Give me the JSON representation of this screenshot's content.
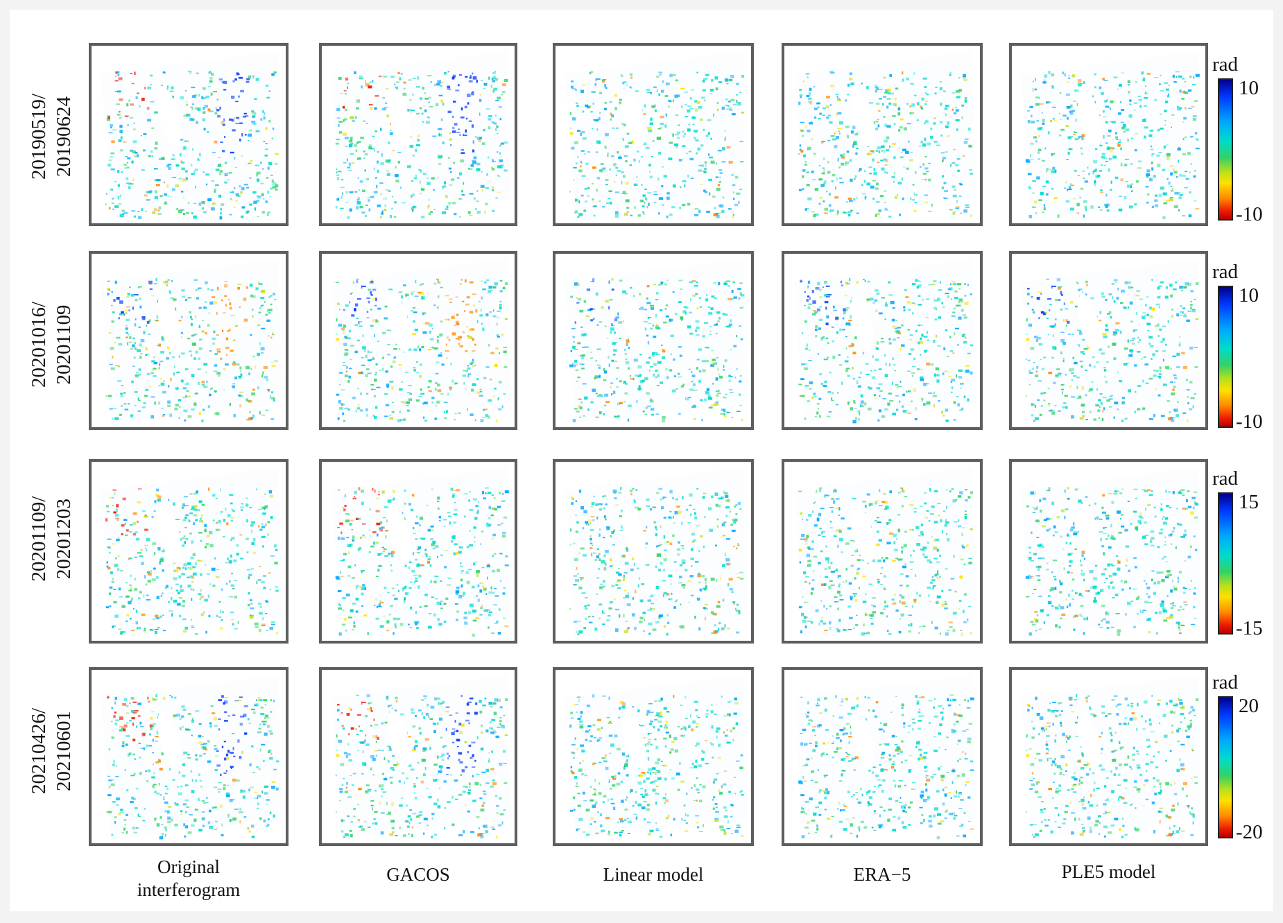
{
  "rows": [
    {
      "label": "20190519/\n20190624",
      "unit": "rad",
      "max": "10",
      "min": "-10"
    },
    {
      "label": "20201016/\n20201109",
      "unit": "rad",
      "max": "10",
      "min": "-10"
    },
    {
      "label": "20201109/\n20201203",
      "unit": "rad",
      "max": "15",
      "min": "-15"
    },
    {
      "label": "20210426/\n20210601",
      "unit": "rad",
      "max": "20",
      "min": "-20"
    }
  ],
  "columns": [
    {
      "label": "Original\ninterferogram"
    },
    {
      "label": "GACOS"
    },
    {
      "label": "Linear model"
    },
    {
      "label": "ERA−5"
    },
    {
      "label": "PLE5 model"
    }
  ],
  "colors": {
    "frame": "#5e5e5e",
    "colormap": [
      "#00008b",
      "#0037ff",
      "#00a6ff",
      "#00dccc",
      "#33d266",
      "#b8e01c",
      "#ffe000",
      "#ff8a00",
      "#ef1c00",
      "#b80000"
    ]
  }
}
